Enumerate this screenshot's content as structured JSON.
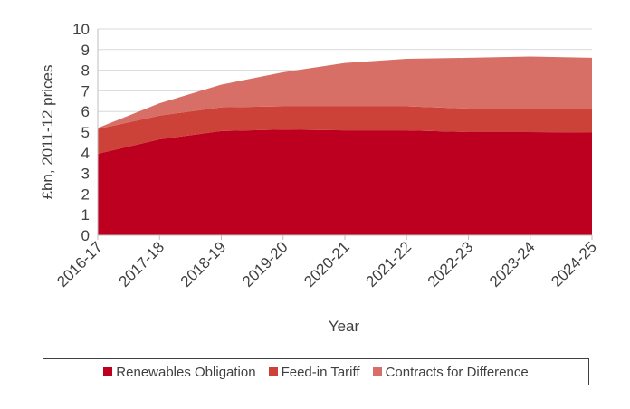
{
  "chart_data": {
    "type": "area",
    "stacked": true,
    "categories": [
      "2016-17",
      "2017-18",
      "2018-19",
      "2019-20",
      "2020-21",
      "2021-22",
      "2022-23",
      "2023-24",
      "2024-25"
    ],
    "ylabel": "£bn, 2011-12 prices",
    "xlabel": "Year",
    "ylim": [
      0,
      10
    ],
    "yticks": [
      0,
      1,
      2,
      3,
      4,
      5,
      6,
      7,
      8,
      9,
      10
    ],
    "grid": true,
    "legend_position": "bottom",
    "series": [
      {
        "name": "Renewables Obligation",
        "color": "#be0020",
        "values": [
          3.95,
          4.65,
          5.05,
          5.12,
          5.08,
          5.08,
          5.0,
          5.0,
          4.98
        ]
      },
      {
        "name": "Feed-in Tariff",
        "color": "#cc4138",
        "values": [
          1.2,
          1.15,
          1.15,
          1.13,
          1.17,
          1.17,
          1.14,
          1.14,
          1.14
        ]
      },
      {
        "name": "Contracts for Difference",
        "color": "#d86f67",
        "values": [
          0.05,
          0.6,
          1.1,
          1.65,
          2.1,
          2.3,
          2.46,
          2.52,
          2.48
        ]
      }
    ]
  }
}
